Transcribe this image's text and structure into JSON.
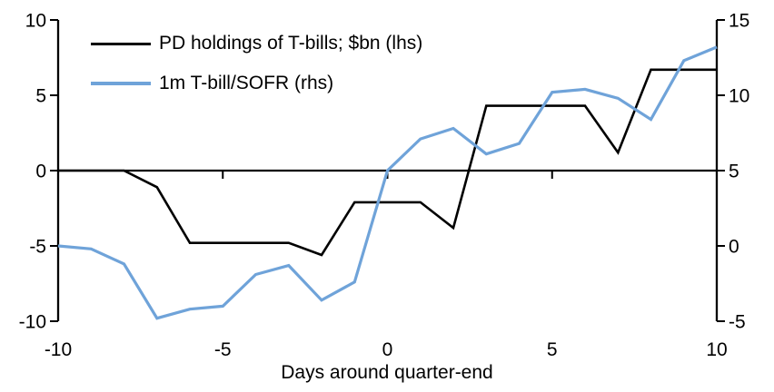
{
  "chart_data": {
    "type": "line",
    "title": "",
    "xlabel": "Days around quarter-end",
    "grid": false,
    "legend_position": "top-left",
    "axis_color": "#000000",
    "x": [
      -10,
      -9,
      -8,
      -7,
      -6,
      -5,
      -4,
      -3,
      -2,
      -1,
      0,
      1,
      2,
      3,
      4,
      5,
      6,
      7,
      8,
      9,
      10
    ],
    "x_axis": {
      "range": [
        -10,
        10
      ],
      "ticks": [
        -10,
        -5,
        0,
        5,
        10
      ]
    },
    "left_axis": {
      "range": [
        -10,
        10
      ],
      "ticks": [
        10,
        5,
        0,
        -5,
        -10
      ]
    },
    "right_axis": {
      "range": [
        -5,
        15
      ],
      "ticks": [
        15,
        10,
        5,
        0,
        -5
      ]
    },
    "series": [
      {
        "name": "PD holdings of T-bills; $bn (lhs)",
        "axis": "left",
        "color": "#000000",
        "values": [
          0,
          0,
          0,
          -1.1,
          -4.8,
          -4.8,
          -4.8,
          -4.8,
          -5.6,
          -2.1,
          -2.1,
          -2.1,
          -3.8,
          4.3,
          4.3,
          4.3,
          4.3,
          1.2,
          6.7,
          6.7,
          6.7
        ]
      },
      {
        "name": "1m T-bill/SOFR (rhs)",
        "axis": "right",
        "color": "#6FA3D9",
        "values": [
          0,
          -0.2,
          -1.2,
          -4.8,
          -4.2,
          -4.0,
          -1.9,
          -1.3,
          -3.6,
          -2.4,
          5.0,
          7.1,
          7.8,
          6.1,
          6.8,
          10.2,
          10.4,
          9.8,
          8.4,
          12.3,
          13.2
        ]
      }
    ]
  }
}
